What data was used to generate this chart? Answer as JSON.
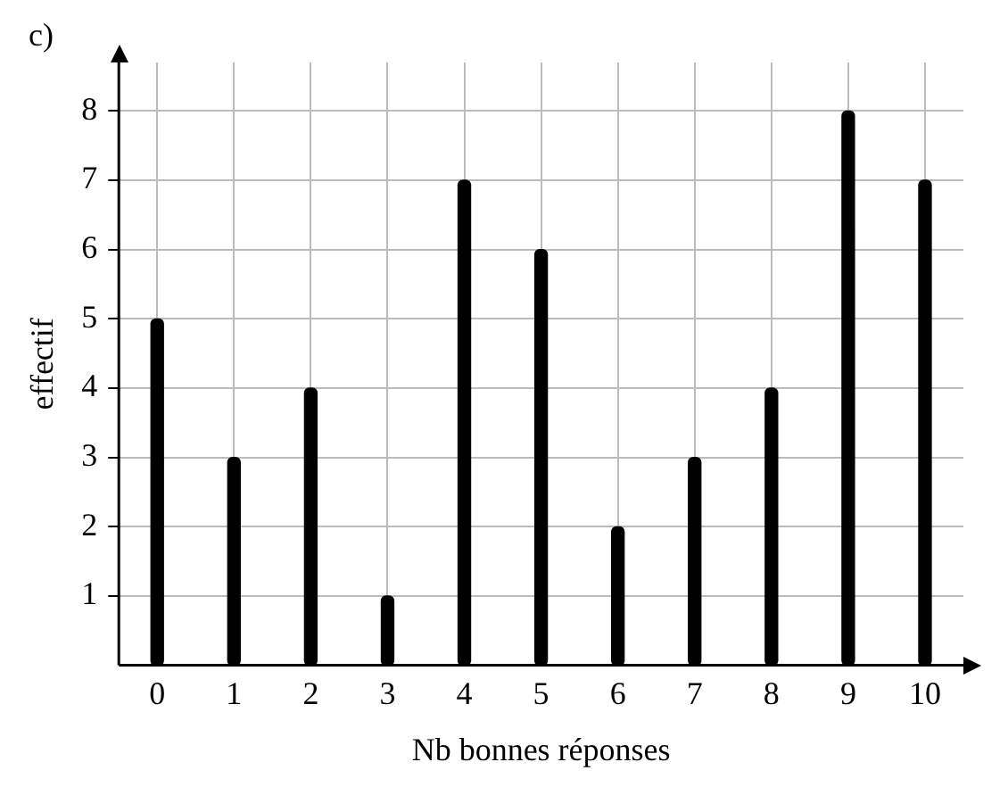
{
  "chart_data": {
    "type": "bar",
    "xlabel": "Nb bonnes réponses",
    "ylabel": "effectif",
    "annotations": [
      "c)"
    ],
    "categories": [
      "0",
      "1",
      "2",
      "3",
      "4",
      "5",
      "6",
      "7",
      "8",
      "9",
      "10"
    ],
    "values": [
      5,
      3,
      4,
      1,
      7,
      6,
      2,
      3,
      4,
      8,
      7
    ],
    "color": "#000000",
    "ylim": [
      0,
      8.7
    ],
    "yticks": [
      1,
      2,
      3,
      4,
      5,
      6,
      7,
      8
    ],
    "grid": true,
    "legend": false
  }
}
